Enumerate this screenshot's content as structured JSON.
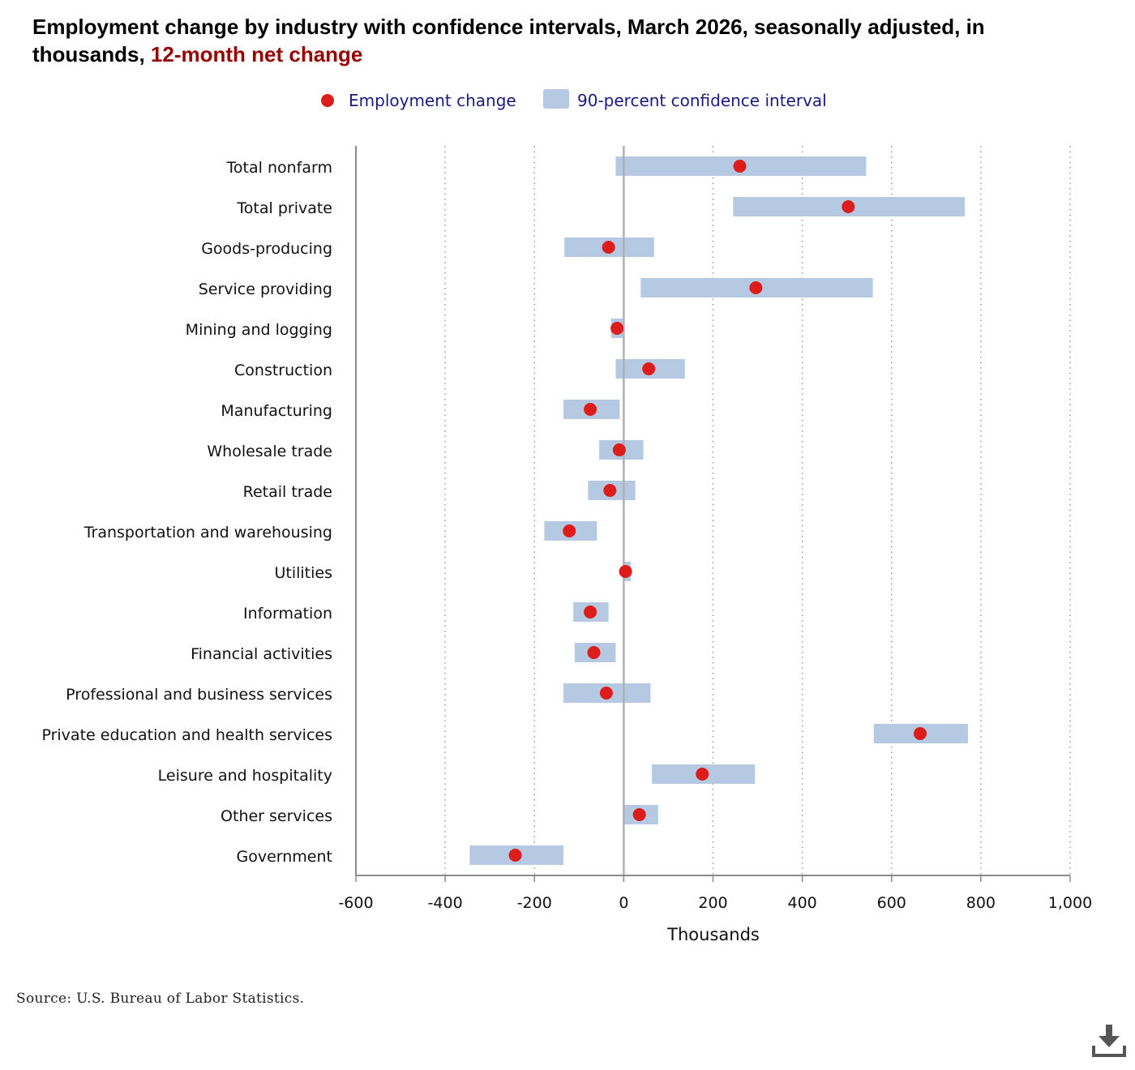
{
  "title": {
    "main": "Employment change by industry with confidence intervals, March 2026, seasonally adjusted, in thousands, ",
    "highlight": "12-month net change"
  },
  "legend": {
    "point_label": "Employment change",
    "interval_label": "90-percent confidence interval"
  },
  "colors": {
    "point": "#dd1c1c",
    "interval": "#b5cae2",
    "title_highlight": "#990000",
    "legend_text": "#1a1a80"
  },
  "source": "Source: U.S. Bureau of Labor Statistics.",
  "download_icon": "download-icon",
  "chart_data": {
    "type": "interval-dot",
    "title": "Employment change by industry with confidence intervals, March 2026, seasonally adjusted, in thousands, 12-month net change",
    "xlabel": "Thousands",
    "ylabel": "",
    "xlim": [
      -600,
      1000
    ],
    "xticks": [
      -600,
      -400,
      -200,
      0,
      200,
      400,
      600,
      800,
      1000
    ],
    "xtick_labels": [
      "-600",
      "-400",
      "-200",
      "0",
      "200",
      "400",
      "600",
      "800",
      "1,000"
    ],
    "grid": "vertical dotted",
    "legend_position": "top-center",
    "categories": [
      "Total nonfarm",
      "Total private",
      "Goods-producing",
      "Service providing",
      "Mining and logging",
      "Construction",
      "Manufacturing",
      "Wholesale trade",
      "Retail trade",
      "Transportation and warehousing",
      "Utilities",
      "Information",
      "Financial activities",
      "Professional and business services",
      "Private education and health services",
      "Leisure and hospitality",
      "Other services",
      "Government"
    ],
    "series": [
      {
        "name": "Employment change",
        "values": [
          260,
          503,
          -34,
          296,
          -15,
          56,
          -75,
          -10,
          -31,
          -122,
          4,
          -75,
          -67,
          -39,
          664,
          176,
          35,
          -243
        ]
      },
      {
        "name": "90-percent confidence interval",
        "lower": [
          -18,
          245,
          -133,
          38,
          -28,
          -18,
          -135,
          -55,
          -80,
          -178,
          -2,
          -113,
          -110,
          -135,
          560,
          63,
          -2,
          -345
        ],
        "upper": [
          543,
          764,
          68,
          558,
          0,
          137,
          -9,
          44,
          26,
          -60,
          16,
          -34,
          -18,
          60,
          771,
          294,
          77,
          -135
        ]
      }
    ]
  }
}
